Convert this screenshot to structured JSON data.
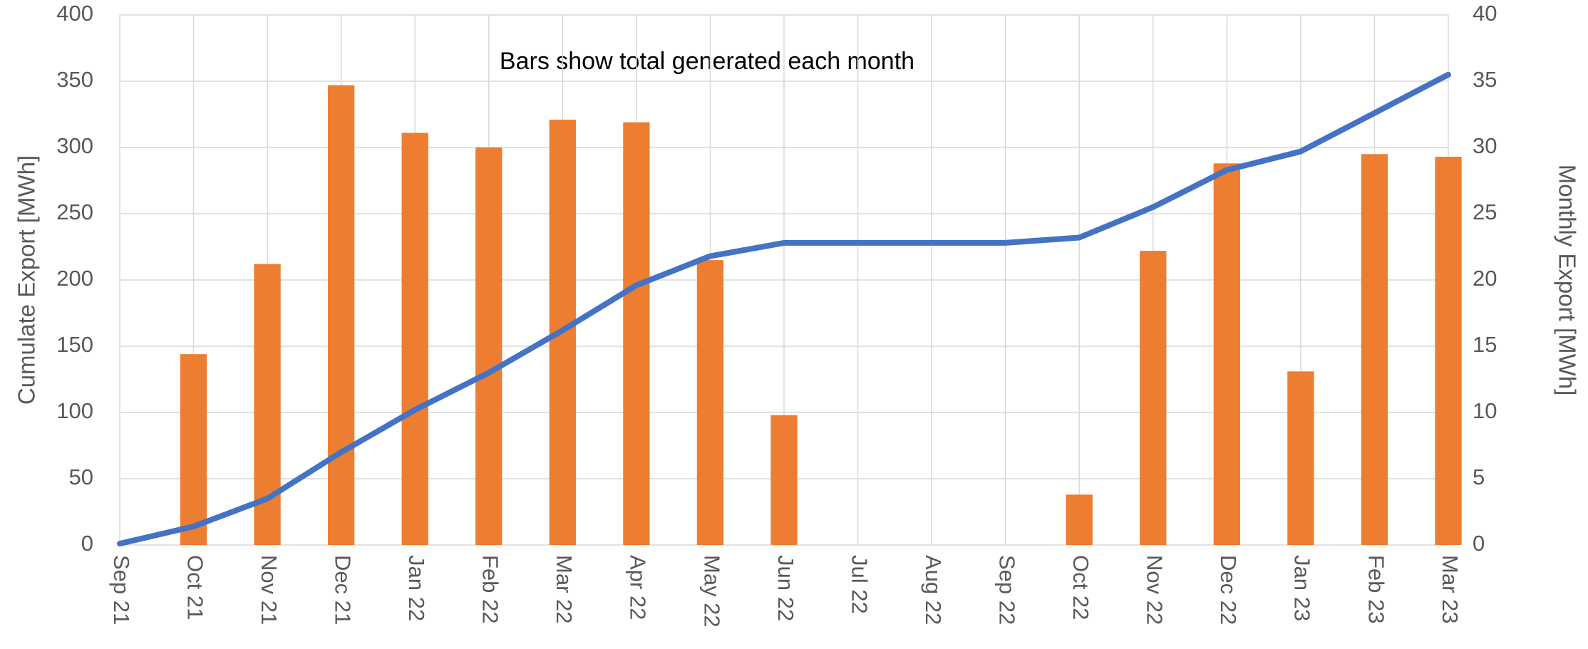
{
  "chart_data": {
    "type": "combo",
    "annotation": "Bars show total generated each month",
    "y_label": "Cumulate Export [MWh]",
    "y2_label": "Monthly Export [MWh]",
    "categories": [
      "Sep 21",
      "Oct 21",
      "Nov 21",
      "Dec 21",
      "Jan 22",
      "Feb 22",
      "Mar 22",
      "Apr 22",
      "May 22",
      "Jun 22",
      "Jul 22",
      "Aug 22",
      "Sep 22",
      "Oct 22",
      "Nov 22",
      "Dec 22",
      "Jan 23",
      "Feb 23",
      "Mar 23"
    ],
    "series": [
      {
        "type": "bar",
        "axis": "y2",
        "color": "#ed7d31",
        "values": [
          null,
          14.4,
          21.2,
          34.7,
          31.1,
          30.0,
          32.1,
          31.9,
          21.5,
          9.8,
          0,
          0,
          0,
          3.8,
          22.2,
          28.8,
          13.1,
          29.5,
          29.3
        ]
      },
      {
        "type": "line",
        "axis": "y",
        "color": "#4472c4",
        "values": [
          1,
          14,
          35,
          70,
          102,
          130,
          162,
          196,
          218,
          228,
          228,
          228,
          228,
          232,
          255,
          283,
          297,
          326,
          355
        ]
      }
    ],
    "ylim": [
      0,
      400
    ],
    "yticks": [
      0,
      50,
      100,
      150,
      200,
      250,
      300,
      350,
      400
    ],
    "y2lim": [
      0,
      40
    ],
    "y2ticks": [
      0,
      5,
      10,
      15,
      20,
      25,
      30,
      35,
      40
    ],
    "grid": true
  }
}
